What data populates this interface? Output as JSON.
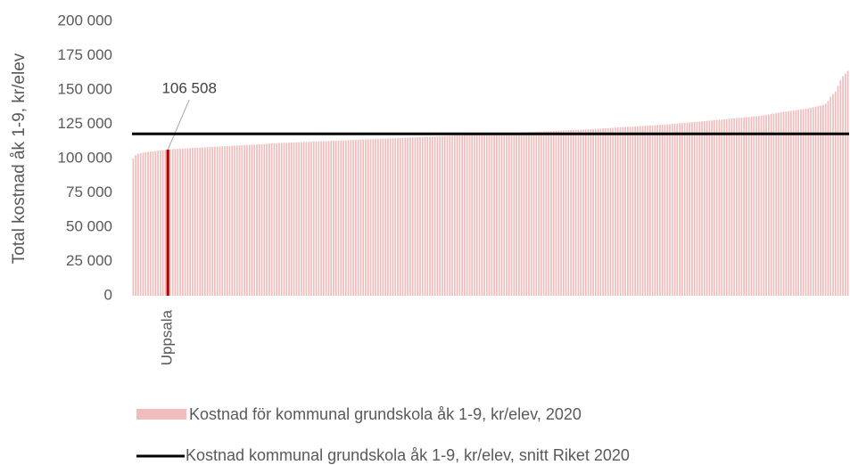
{
  "chart_data": {
    "type": "bar",
    "y_label": "Total kostnad åk 1-9, kr/elev",
    "categories": [
      null,
      null,
      null,
      null,
      null,
      null,
      null,
      null,
      null,
      null,
      null,
      null,
      null,
      null,
      "Uppsala",
      null,
      null,
      null,
      null,
      null,
      null,
      null,
      null,
      null,
      null,
      null,
      null,
      null,
      null,
      null,
      null,
      null,
      null,
      null,
      null,
      null,
      null,
      null,
      null,
      null,
      null,
      null,
      null,
      null,
      null,
      null,
      null,
      null,
      null,
      null,
      null,
      null,
      null,
      null,
      null,
      null,
      null,
      null,
      null,
      null,
      null,
      null,
      null,
      null,
      null,
      null,
      null,
      null,
      null,
      null,
      null,
      null,
      null,
      null,
      null,
      null,
      null,
      null,
      null,
      null,
      null,
      null,
      null,
      null,
      null,
      null,
      null,
      null,
      null,
      null,
      null,
      null,
      null,
      null,
      null,
      null,
      null,
      null,
      null,
      null,
      null,
      null,
      null,
      null,
      null,
      null,
      null,
      null,
      null,
      null,
      null,
      null,
      null,
      null,
      null,
      null,
      null,
      null,
      null,
      null,
      null,
      null,
      null,
      null,
      null,
      null,
      null,
      null,
      null,
      null,
      null,
      null,
      null,
      null,
      null,
      null,
      null,
      null,
      null,
      null,
      null,
      null,
      null,
      null,
      null,
      null,
      null,
      null,
      null,
      null,
      null,
      null,
      null,
      null,
      null,
      null,
      null,
      null,
      null,
      null,
      null,
      null,
      null,
      null,
      null,
      null,
      null,
      null,
      null,
      null,
      null,
      null,
      null,
      null,
      null,
      null,
      null,
      null,
      null,
      null,
      null,
      null,
      null,
      null,
      null,
      null,
      null,
      null,
      null,
      null,
      null,
      null,
      null,
      null,
      null,
      null,
      null,
      null,
      null,
      null,
      null,
      null,
      null,
      null,
      null,
      null,
      null,
      null,
      null,
      null,
      null,
      null,
      null,
      null,
      null,
      null,
      null,
      null,
      null,
      null,
      null,
      null,
      null,
      null,
      null,
      null,
      null,
      null,
      null,
      null,
      null,
      null,
      null,
      null,
      null,
      null,
      null,
      null,
      null,
      null,
      null,
      null,
      null,
      null,
      null,
      null,
      null,
      null,
      null,
      null,
      null,
      null,
      null,
      null,
      null,
      null,
      null,
      null,
      null,
      null,
      null,
      null,
      null,
      null,
      null,
      null,
      null,
      null,
      null,
      null,
      null,
      null,
      null,
      null,
      null,
      null,
      null,
      null,
      null,
      null,
      null,
      null,
      null,
      null,
      null,
      null,
      null,
      null,
      null,
      null
    ],
    "series": [
      {
        "name": "Kostnad för kommunal grundskola åk 1-9, kr/elev, 2020",
        "color": "#f0bcbc",
        "values": [
          100000,
          102500,
          103500,
          104000,
          104300,
          104600,
          104900,
          105100,
          105300,
          105500,
          105700,
          105900,
          106100,
          106300,
          106508,
          106800,
          106900,
          107000,
          107100,
          107200,
          107300,
          107400,
          107500,
          107600,
          107700,
          107800,
          107900,
          108000,
          108100,
          108200,
          108300,
          108400,
          108500,
          108600,
          108700,
          108800,
          108900,
          109000,
          109100,
          109200,
          109300,
          109400,
          109500,
          109600,
          109700,
          109800,
          109900,
          110000,
          110100,
          110200,
          110300,
          110400,
          110500,
          110600,
          110800,
          111000,
          111100,
          111200,
          111200,
          111300,
          111400,
          111500,
          111500,
          111600,
          111700,
          111800,
          111800,
          111900,
          112000,
          112100,
          112100,
          112200,
          112300,
          112400,
          112400,
          112500,
          112600,
          112700,
          112700,
          112800,
          112900,
          113000,
          113000,
          113100,
          113200,
          113300,
          113300,
          113400,
          113500,
          113600,
          113600,
          113700,
          113800,
          113900,
          113900,
          114000,
          114100,
          114200,
          114200,
          114300,
          114400,
          114500,
          114500,
          114600,
          114700,
          114800,
          114800,
          114900,
          115000,
          115000,
          115100,
          115200,
          115300,
          115400,
          115400,
          115500,
          115600,
          115700,
          115800,
          115900,
          115900,
          116000,
          116100,
          116200,
          116300,
          116400,
          116400,
          116500,
          116600,
          116700,
          116800,
          116900,
          116900,
          117000,
          117100,
          117200,
          117300,
          117400,
          117400,
          117500,
          117600,
          117700,
          117800,
          117900,
          117900,
          118000,
          118100,
          118200,
          118300,
          118400,
          118400,
          118500,
          118600,
          118700,
          118800,
          118900,
          118900,
          119000,
          119100,
          119200,
          119300,
          119400,
          119400,
          119500,
          119600,
          119700,
          119800,
          119900,
          119900,
          120000,
          120100,
          120200,
          120300,
          120400,
          120400,
          120500,
          120600,
          120700,
          120800,
          120900,
          120900,
          121000,
          121100,
          121200,
          121300,
          121400,
          121600,
          121700,
          121800,
          121900,
          122000,
          122100,
          122200,
          122300,
          122400,
          122600,
          122700,
          122800,
          122900,
          123000,
          123100,
          123200,
          123300,
          123400,
          123600,
          123700,
          123800,
          123900,
          124000,
          124100,
          124200,
          124300,
          124400,
          124600,
          124700,
          124800,
          124900,
          125000,
          125200,
          125300,
          125500,
          125700,
          125800,
          126000,
          126200,
          126300,
          126500,
          126700,
          126800,
          127000,
          127200,
          127300,
          127500,
          127700,
          127800,
          128000,
          128200,
          128300,
          128500,
          128700,
          128800,
          129000,
          129200,
          129300,
          129500,
          129700,
          129800,
          130000,
          130200,
          130300,
          130500,
          130700,
          130800,
          131000,
          131300,
          131600,
          131900,
          132200,
          132500,
          132800,
          133100,
          133400,
          133700,
          134000,
          134300,
          134600,
          134800,
          135000,
          135300,
          135500,
          135800,
          136000,
          136300,
          136700,
          137000,
          137400,
          137800,
          138200,
          138600,
          139200,
          140000,
          142000,
          145000,
          147000,
          149000,
          153000,
          157000,
          160000,
          162000,
          164000
        ]
      }
    ],
    "reference_line": {
      "name": "Kostnad kommunal grundskola åk 1-9, kr/elev, snitt Riket 2020",
      "value": 118000,
      "color": "#000000"
    },
    "annotation": {
      "category": "Uppsala",
      "label": "106 508",
      "color": "#c00000"
    },
    "ylim": [
      0,
      200000
    ],
    "yticks": [
      {
        "value": 0,
        "label": "0"
      },
      {
        "value": 25000,
        "label": "25 000"
      },
      {
        "value": 50000,
        "label": "50 000"
      },
      {
        "value": 75000,
        "label": "75 000"
      },
      {
        "value": 100000,
        "label": "100 000"
      },
      {
        "value": 125000,
        "label": "125 000"
      },
      {
        "value": 150000,
        "label": "150 000"
      },
      {
        "value": 175000,
        "label": "175 000"
      },
      {
        "value": 200000,
        "label": "200 000"
      }
    ],
    "grid": false
  }
}
